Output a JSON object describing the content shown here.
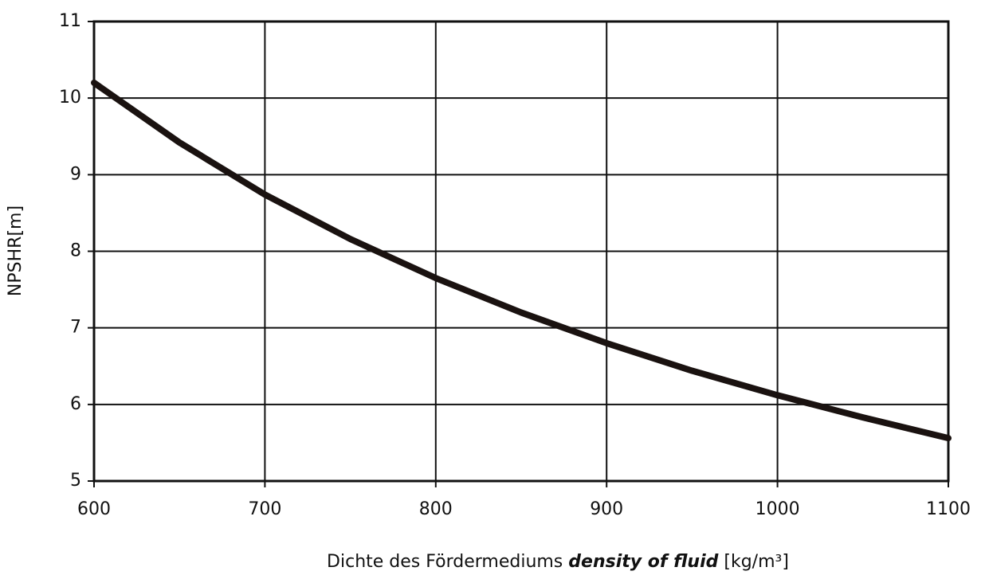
{
  "chart_data": {
    "type": "line",
    "ylabel": "NPSHR[m]",
    "xlabel": {
      "german": "Dichte des Fördermediums",
      "english": "density of fluid",
      "unit": "[kg/m³]"
    },
    "x": [
      600,
      650,
      700,
      750,
      800,
      850,
      900,
      950,
      1000,
      1050,
      1100
    ],
    "series": [
      {
        "color": "#1a1210",
        "values": [
          10.2,
          9.42,
          8.74,
          8.16,
          7.65,
          7.2,
          6.8,
          6.44,
          6.12,
          5.83,
          5.56
        ]
      }
    ],
    "xlim": [
      600,
      1100
    ],
    "xticks": [
      600,
      700,
      800,
      900,
      1000,
      1100
    ],
    "ylim": [
      5,
      11
    ],
    "yticks": [
      5,
      6,
      7,
      8,
      9,
      10,
      11
    ],
    "grid": true
  }
}
